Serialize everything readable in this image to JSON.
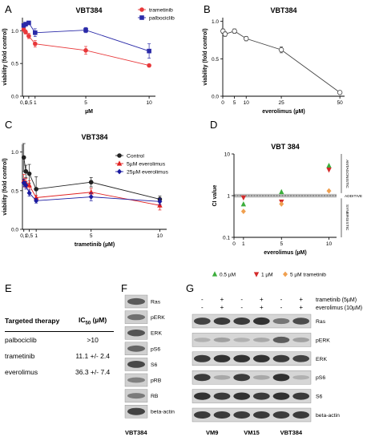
{
  "panels": {
    "A": "A",
    "B": "B",
    "C": "C",
    "D": "D",
    "E": "E",
    "F": "F",
    "G": "G"
  },
  "colors": {
    "trametinib": "#e8383a",
    "palbociclib": "#2a2aa8",
    "control": "#222222",
    "evero5": "#e02020",
    "evero25": "#1a1aa0",
    "triGreen": "#3cae3c",
    "triRed": "#d42a2a",
    "diamond": "#f0a050",
    "additiveBand": "#bfbfbf"
  },
  "chart_data": [
    {
      "id": "A",
      "type": "line",
      "title": "VBT384",
      "xlabel": "µM",
      "ylabel": "viability (fold control)",
      "xlim": [
        0,
        10.5
      ],
      "ylim": [
        0,
        1.2
      ],
      "xticks": [
        {
          "v": 0.1,
          "l": "0,1"
        },
        {
          "v": 0.5,
          "l": "0,5"
        },
        {
          "v": 1,
          "l": "1"
        },
        {
          "v": 5,
          "l": "5"
        },
        {
          "v": 10,
          "l": "10"
        }
      ],
      "yticks": [
        0,
        0.5,
        1.0
      ],
      "yticklabels": [
        "0.0",
        "0.5",
        "1.0"
      ],
      "legend_position": "top-right",
      "series": [
        {
          "name": "trametinib",
          "marker": "circle",
          "x": [
            0.1,
            0.25,
            0.5,
            1,
            5,
            10
          ],
          "y": [
            1.02,
            0.98,
            0.92,
            0.8,
            0.7,
            0.47
          ],
          "err": [
            0.03,
            0.03,
            0.04,
            0.05,
            0.06,
            0.02
          ]
        },
        {
          "name": "palbociclib",
          "marker": "square",
          "x": [
            0.1,
            0.25,
            0.5,
            1,
            5,
            10
          ],
          "y": [
            1.08,
            1.1,
            1.12,
            0.97,
            1.01,
            0.69
          ],
          "err": [
            0.02,
            0.03,
            0.02,
            0.06,
            0.04,
            0.11
          ]
        }
      ]
    },
    {
      "id": "B",
      "type": "line",
      "title": "VBT384",
      "xlabel": "everolimus (µM)",
      "ylabel": "viability (fold control)",
      "xlim": [
        0,
        52
      ],
      "ylim": [
        0,
        1.05
      ],
      "xticks": [
        {
          "v": 0,
          "l": "0"
        },
        {
          "v": 5,
          "l": "5"
        },
        {
          "v": 10,
          "l": "10"
        },
        {
          "v": 25,
          "l": "25"
        },
        {
          "v": 50,
          "l": "50"
        }
      ],
      "yticks": [
        0,
        0.5,
        1.0
      ],
      "yticklabels": [
        "0.0",
        "0.5",
        "1.0"
      ],
      "series": [
        {
          "name": "",
          "marker": "open-circle",
          "x": [
            0.1,
            1,
            5,
            10,
            25,
            50
          ],
          "y": [
            0.87,
            0.83,
            0.87,
            0.77,
            0.62,
            0.05
          ],
          "err": [
            0.03,
            0.03,
            0.03,
            0.03,
            0.04,
            0.02
          ]
        }
      ]
    },
    {
      "id": "C",
      "type": "line",
      "title": "VBT384",
      "xlabel": "trametinib (µM)",
      "ylabel": "viability (fold control)",
      "xlim": [
        0,
        10.5
      ],
      "ylim": [
        0,
        1.1
      ],
      "xticks": [
        {
          "v": 0.1,
          "l": "0,1"
        },
        {
          "v": 0.5,
          "l": "0,5"
        },
        {
          "v": 1,
          "l": "1"
        },
        {
          "v": 5,
          "l": "5"
        },
        {
          "v": 10,
          "l": "10"
        }
      ],
      "yticks": [
        0,
        0.5,
        1.0
      ],
      "yticklabels": [
        "0.0",
        "0.5",
        "1.0"
      ],
      "legend_position": "top-right",
      "series": [
        {
          "name": "Control",
          "marker": "circle",
          "x": [
            0.1,
            0.25,
            0.5,
            1,
            5,
            10
          ],
          "y": [
            0.93,
            0.75,
            0.72,
            0.52,
            0.61,
            0.39
          ],
          "err": [
            0.18,
            0.08,
            0.12,
            0.16,
            0.06,
            0.04
          ]
        },
        {
          "name": "5µM everolimus",
          "marker": "triangle",
          "x": [
            0.1,
            0.25,
            0.5,
            1,
            5,
            10
          ],
          "y": [
            0.63,
            0.6,
            0.57,
            0.41,
            0.48,
            0.31
          ],
          "err": [
            0.08,
            0.06,
            0.06,
            0.03,
            0.05,
            0.06
          ]
        },
        {
          "name": "25µM everolimus",
          "marker": "diamond",
          "x": [
            0.1,
            0.25,
            0.5,
            1,
            5,
            10
          ],
          "y": [
            0.6,
            0.57,
            0.47,
            0.37,
            0.42,
            0.36
          ],
          "err": [
            0.05,
            0.05,
            0.04,
            0.03,
            0.05,
            0.04
          ]
        }
      ]
    },
    {
      "id": "D",
      "type": "scatter",
      "title": "VBT 384",
      "xlabel": "everolimus (µM)",
      "ylabel": "CI value",
      "log_y": true,
      "xlim": [
        0,
        10.8
      ],
      "ylim": [
        0.1,
        10
      ],
      "xticks": [
        {
          "v": 0,
          "l": "0"
        },
        {
          "v": 1,
          "l": "1"
        },
        {
          "v": 5,
          "l": "5"
        },
        {
          "v": 10,
          "l": "10"
        }
      ],
      "yticks": [
        0.1,
        1,
        10
      ],
      "yticklabels": [
        "0.1",
        "1",
        "10"
      ],
      "additive_band": [
        0.9,
        1.1
      ],
      "band_labels": {
        "above": "ANTAGONISTIC",
        "band": "ADDITIVE",
        "below": "SYNERGISTIC"
      },
      "legend_position": "bottom",
      "series": [
        {
          "name": "0.5 µM",
          "marker": "triangle-up",
          "x": [
            1,
            5,
            10
          ],
          "y": [
            0.62,
            1.22,
            5.2
          ]
        },
        {
          "name": "1 µM",
          "marker": "triangle-down",
          "x": [
            1,
            5,
            10
          ],
          "y": [
            0.9,
            0.72,
            4.2
          ]
        },
        {
          "name": "5 µM trametinib",
          "marker": "diamond",
          "x": [
            1,
            5,
            10
          ],
          "y": [
            0.42,
            0.63,
            1.3
          ]
        }
      ]
    }
  ],
  "table_e": {
    "header_therapy": "Targeted therapy",
    "header_ic": "IC",
    "header_ic_sub": "50",
    "header_ic_unit": " (µM)",
    "rows": [
      {
        "therapy": "palbociclib",
        "value": ">10"
      },
      {
        "therapy": "trametinib",
        "value": "11.1 +/- 2.4"
      },
      {
        "therapy": "everolimus",
        "value": "36.3 +/- 7.4"
      }
    ]
  },
  "blot_f": {
    "labels": [
      "Ras",
      "pERK",
      "ERK",
      "pS6",
      "S6",
      "pRB",
      "RB",
      "beta-actin"
    ],
    "intensity": [
      0.55,
      0.35,
      0.6,
      0.45,
      0.7,
      0.2,
      0.25,
      0.75
    ],
    "cell_line": "VBT384"
  },
  "blot_g": {
    "treatments": [
      {
        "name": "trametinib (5µM)",
        "signs": [
          "-",
          "+",
          "-",
          "+",
          "-",
          "+"
        ]
      },
      {
        "name": "everolimus (10µM)",
        "signs": [
          "-",
          "+",
          "-",
          "+",
          "-",
          "+"
        ]
      }
    ],
    "labels": [
      "Ras",
      "pERK",
      "ERK",
      "pS6",
      "S6",
      "beta-actin"
    ],
    "intensity": [
      [
        0.75,
        0.8,
        0.8,
        0.85,
        0.45,
        0.7
      ],
      [
        0.1,
        0.2,
        0.1,
        0.15,
        0.6,
        0.2
      ],
      [
        0.8,
        0.85,
        0.85,
        0.85,
        0.8,
        0.75
      ],
      [
        0.8,
        0.15,
        0.8,
        0.15,
        0.85,
        0.1
      ],
      [
        0.85,
        0.8,
        0.85,
        0.8,
        0.85,
        0.8
      ],
      [
        0.8,
        0.8,
        0.8,
        0.8,
        0.8,
        0.8
      ]
    ],
    "cell_lines": [
      "VM9",
      "VM15",
      "VBT384"
    ]
  }
}
